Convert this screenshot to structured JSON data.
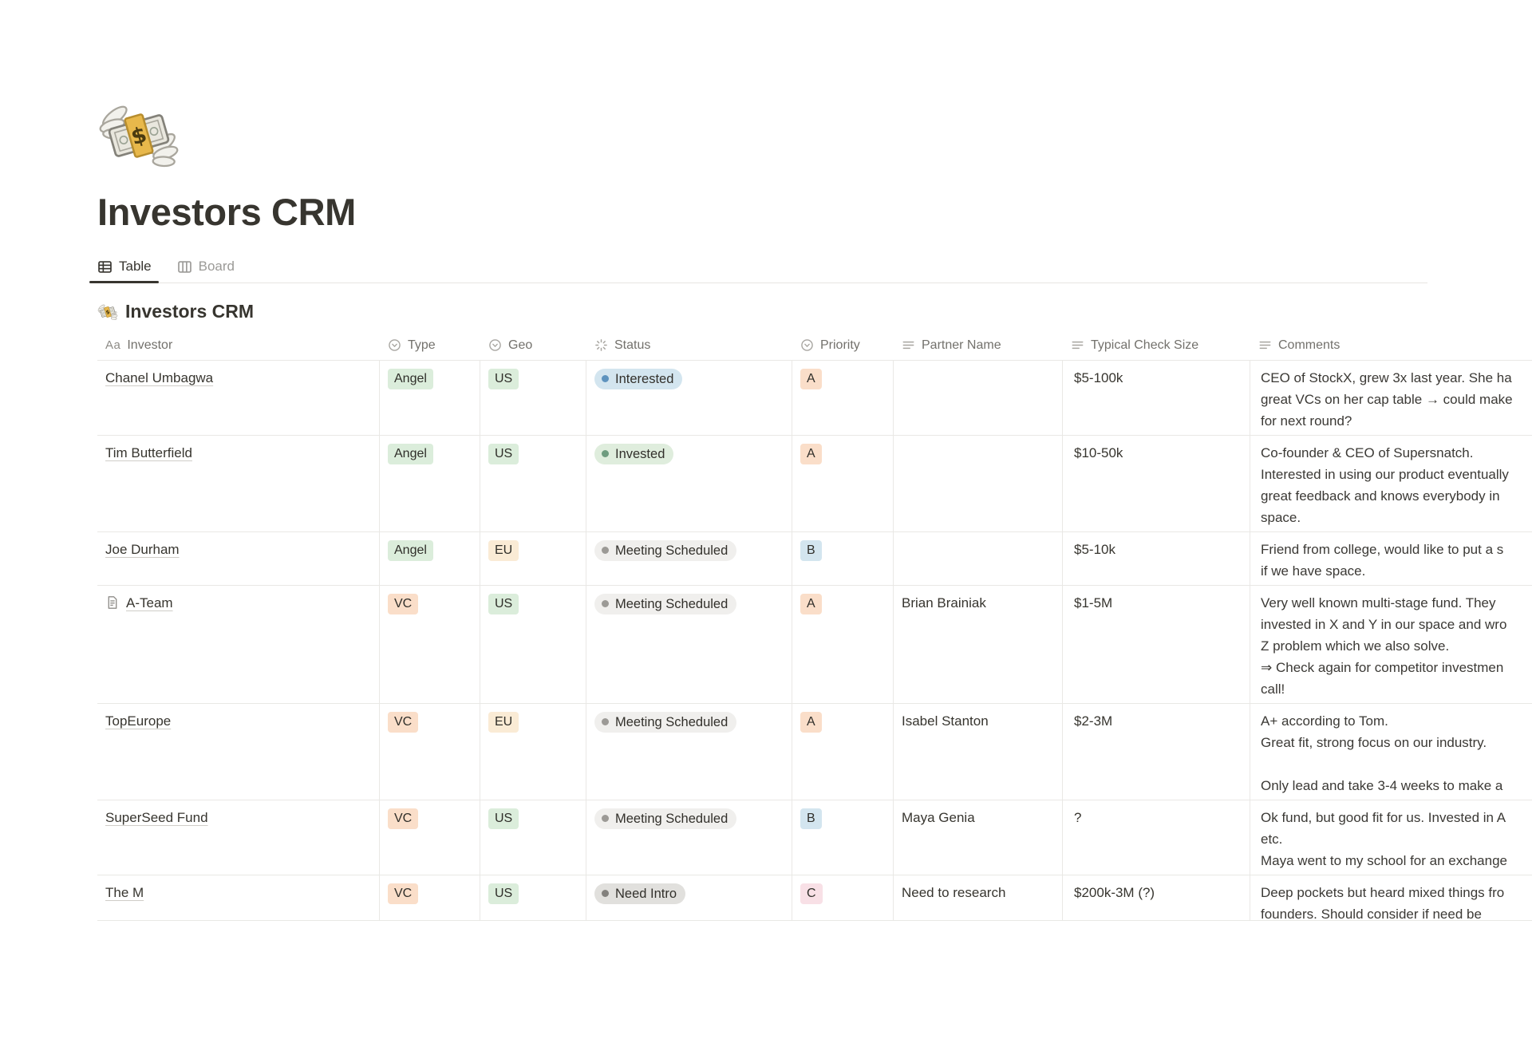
{
  "page": {
    "icon": "money-with-wings",
    "title": "Investors CRM"
  },
  "tabs": [
    {
      "label": "Table",
      "active": true
    },
    {
      "label": "Board",
      "active": false
    }
  ],
  "collection": {
    "icon": "money-with-wings",
    "title": "Investors CRM"
  },
  "table": {
    "columns": [
      {
        "label": "Investor",
        "icon": "title"
      },
      {
        "label": "Type",
        "icon": "select"
      },
      {
        "label": "Geo",
        "icon": "select"
      },
      {
        "label": "Status",
        "icon": "status"
      },
      {
        "label": "Priority",
        "icon": "select"
      },
      {
        "label": "Partner Name",
        "icon": "text"
      },
      {
        "label": "Typical Check Size",
        "icon": "text"
      },
      {
        "label": "Comments",
        "icon": "text"
      }
    ],
    "rows": [
      {
        "investor": "Chanel Umbagwa",
        "has_page_icon": false,
        "type": {
          "label": "Angel",
          "color": "green"
        },
        "geo": {
          "label": "US",
          "color": "green"
        },
        "status": {
          "label": "Interested",
          "color": "blue"
        },
        "priority": {
          "label": "A",
          "color": "orange"
        },
        "partner": "",
        "check_size": "$5-100k",
        "comments": [
          "CEO of StockX, grew 3x last year. She ha",
          "great VCs on her cap table → could make",
          "for next round?"
        ]
      },
      {
        "investor": "Tim Butterfield",
        "has_page_icon": false,
        "type": {
          "label": "Angel",
          "color": "green"
        },
        "geo": {
          "label": "US",
          "color": "green"
        },
        "status": {
          "label": "Invested",
          "color": "green"
        },
        "priority": {
          "label": "A",
          "color": "orange"
        },
        "partner": "",
        "check_size": "$10-50k",
        "comments": [
          "Co-founder & CEO of Supersnatch.",
          "Interested in using our product eventually",
          "great feedback and knows everybody in",
          "space."
        ]
      },
      {
        "investor": "Joe Durham",
        "has_page_icon": false,
        "type": {
          "label": "Angel",
          "color": "green"
        },
        "geo": {
          "label": "EU",
          "color": "yellow"
        },
        "status": {
          "label": "Meeting Scheduled",
          "color": "lightgray"
        },
        "priority": {
          "label": "B",
          "color": "blue"
        },
        "partner": "",
        "check_size": "$5-10k",
        "comments": [
          "Friend from college, would like to put a s",
          "if we have space."
        ]
      },
      {
        "investor": "A-Team",
        "has_page_icon": true,
        "type": {
          "label": "VC",
          "color": "orange"
        },
        "geo": {
          "label": "US",
          "color": "green"
        },
        "status": {
          "label": "Meeting Scheduled",
          "color": "lightgray"
        },
        "priority": {
          "label": "A",
          "color": "orange"
        },
        "partner": "Brian Brainiak",
        "check_size": "$1-5M",
        "comments": [
          "Very well known multi-stage fund. They",
          "invested in X and Y in our space and wro",
          "Z problem which we also solve.",
          "⇒ Check again for competitor investmen",
          "call!"
        ]
      },
      {
        "investor": "TopEurope",
        "has_page_icon": false,
        "type": {
          "label": "VC",
          "color": "orange"
        },
        "geo": {
          "label": "EU",
          "color": "yellow"
        },
        "status": {
          "label": "Meeting Scheduled",
          "color": "lightgray"
        },
        "priority": {
          "label": "A",
          "color": "orange"
        },
        "partner": "Isabel Stanton",
        "check_size": "$2-3M",
        "comments": [
          "A+ according to Tom.",
          "Great fit, strong focus on our industry.",
          "",
          "Only lead and take 3-4 weeks to make a"
        ]
      },
      {
        "investor": "SuperSeed Fund",
        "has_page_icon": false,
        "type": {
          "label": "VC",
          "color": "orange"
        },
        "geo": {
          "label": "US",
          "color": "green"
        },
        "status": {
          "label": "Meeting Scheduled",
          "color": "lightgray"
        },
        "priority": {
          "label": "B",
          "color": "blue"
        },
        "partner": "Maya Genia",
        "check_size": "?",
        "comments": [
          "Ok fund, but good fit for us. Invested in A",
          "etc.",
          "Maya went to my school for an exchange"
        ]
      },
      {
        "investor": "The M",
        "has_page_icon": false,
        "type": {
          "label": "VC",
          "color": "orange"
        },
        "geo": {
          "label": "US",
          "color": "green"
        },
        "status": {
          "label": "Need Intro",
          "color": "gray"
        },
        "priority": {
          "label": "C",
          "color": "pink"
        },
        "partner": "Need to research",
        "check_size": "$200k-3M (?)",
        "comments": [
          "Deep pockets but heard mixed things fro",
          "founders. Should consider if need be"
        ]
      }
    ]
  },
  "palette": {
    "tag_green_bg": "#DBEDDB",
    "tag_orange_bg": "#FADEC9",
    "tag_yellow_bg": "#FAEBD5",
    "tag_blue_bg": "#D3E5EF",
    "tag_pink_bg": "#F8E0E6",
    "pill_blue_bg": "#D3E5EF",
    "pill_blue_dot": "#5E93BE",
    "pill_green_bg": "#DFEDDD",
    "pill_green_dot": "#6E9C7F",
    "pill_lightgray_bg": "#F0EFED",
    "pill_lightgray_dot": "#9C9A96",
    "pill_gray_bg": "#E1E0DD",
    "pill_gray_dot": "#83817D",
    "text_primary": "#37352F",
    "text_secondary": "#73716C",
    "border": "#E9E8E5",
    "tab_underline": "#37352F"
  }
}
